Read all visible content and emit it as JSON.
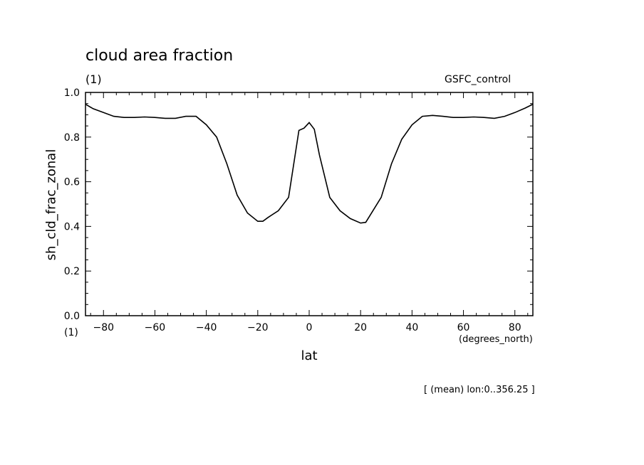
{
  "title": "cloud area fraction",
  "units": "(1)",
  "run_label": "GSFC_control",
  "ylabel": "sh_cld_frac_zonal",
  "xlabel": "lat",
  "x_units": "(degrees_north)",
  "y_units_bottom": "(1)",
  "footnote": "[ (mean) lon:0..356.25 ]",
  "chart_data": {
    "type": "line",
    "title": "cloud area fraction",
    "xlabel": "lat",
    "ylabel": "sh_cld_frac_zonal",
    "xlim": [
      -87,
      87
    ],
    "ylim": [
      0,
      1
    ],
    "x_ticks": [
      -80,
      -60,
      -40,
      -20,
      0,
      20,
      40,
      60,
      80
    ],
    "y_ticks": [
      0.0,
      0.2,
      0.4,
      0.6,
      0.8,
      1.0
    ],
    "y_tick_labels": [
      "0.0",
      "0.2",
      "0.4",
      "0.6",
      "0.8",
      "1.0"
    ],
    "grid": false,
    "series": [
      {
        "x": [
          -87,
          -84,
          -80,
          -76,
          -72,
          -68,
          -64,
          -60,
          -56,
          -52,
          -48,
          -44,
          -40,
          -36,
          -32,
          -28,
          -24,
          -20,
          -18,
          -16,
          -12,
          -8,
          -4,
          -2,
          0,
          2,
          4,
          8,
          12,
          16,
          20,
          22,
          24,
          28,
          32,
          36,
          40,
          44,
          48,
          52,
          56,
          60,
          64,
          68,
          72,
          76,
          80,
          84,
          87
        ],
        "y": [
          0.947,
          0.927,
          0.91,
          0.893,
          0.888,
          0.888,
          0.89,
          0.888,
          0.884,
          0.884,
          0.893,
          0.893,
          0.855,
          0.8,
          0.68,
          0.54,
          0.46,
          0.423,
          0.423,
          0.44,
          0.47,
          0.53,
          0.83,
          0.84,
          0.865,
          0.835,
          0.72,
          0.53,
          0.47,
          0.435,
          0.415,
          0.418,
          0.455,
          0.53,
          0.68,
          0.79,
          0.855,
          0.893,
          0.897,
          0.893,
          0.888,
          0.888,
          0.89,
          0.888,
          0.884,
          0.893,
          0.91,
          0.93,
          0.947
        ]
      }
    ]
  }
}
